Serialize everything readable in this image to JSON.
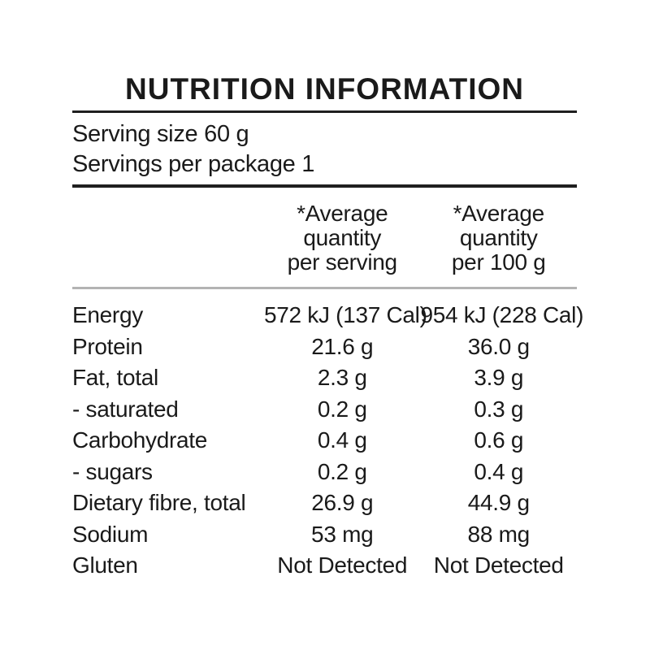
{
  "panel": {
    "title": "NUTRITION INFORMATION",
    "serving_size": "Serving size 60 g",
    "servings_per_package": "Servings per package 1",
    "columns": {
      "per_serving": [
        "*Average",
        "quantity",
        "per serving"
      ],
      "per_100g": [
        "*Average",
        "quantity",
        "per 100 g"
      ]
    },
    "rows": [
      {
        "label": "Energy",
        "per_serving": "572 kJ (137 Cal)",
        "per_100g": "954 kJ (228 Cal)"
      },
      {
        "label": "Protein",
        "per_serving": "21.6 g",
        "per_100g": "36.0 g"
      },
      {
        "label": "Fat, total",
        "per_serving": "2.3 g",
        "per_100g": "3.9 g"
      },
      {
        "label": "- saturated",
        "per_serving": "0.2 g",
        "per_100g": "0.3 g"
      },
      {
        "label": "Carbohydrate",
        "per_serving": "0.4 g",
        "per_100g": "0.6 g"
      },
      {
        "label": "- sugars",
        "per_serving": "0.2 g",
        "per_100g": "0.4 g"
      },
      {
        "label": "Dietary fibre, total",
        "per_serving": "26.9 g",
        "per_100g": "44.9 g"
      },
      {
        "label": "Sodium",
        "per_serving": "53 mg",
        "per_100g": "88 mg"
      },
      {
        "label": "Gluten",
        "per_serving": "Not Detected",
        "per_100g": "Not Detected"
      }
    ],
    "colors": {
      "background": "#ffffff",
      "text": "#1a1a1a",
      "rule_dark": "#1f1f1f",
      "rule_light": "#b3b3b3"
    }
  }
}
